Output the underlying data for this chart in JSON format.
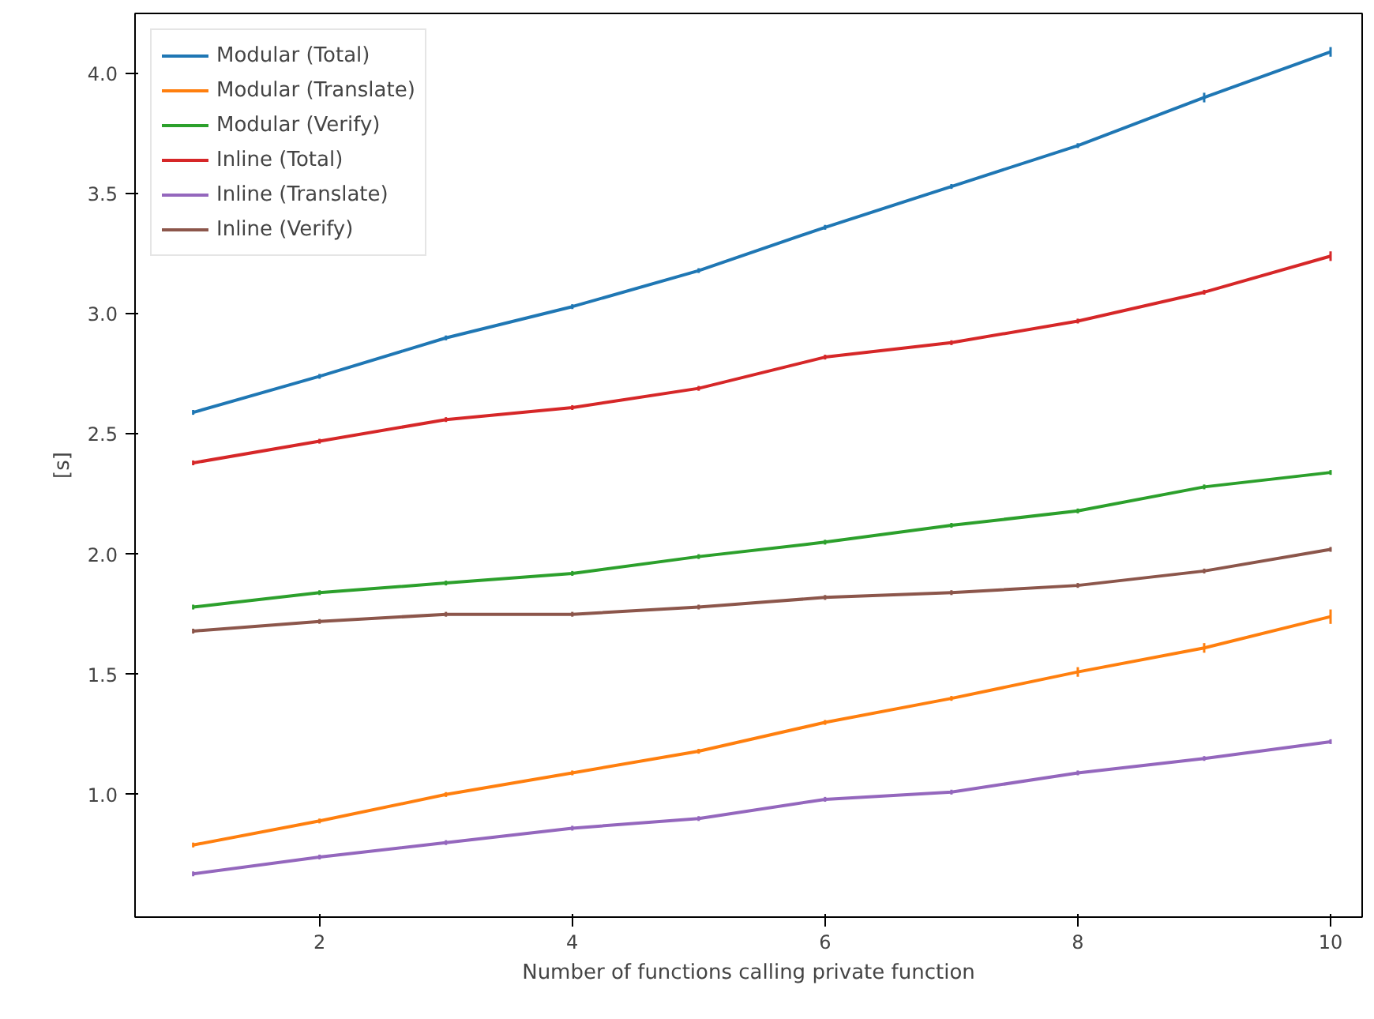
{
  "chart_data": {
    "type": "line",
    "xlabel": "Number of functions calling private function",
    "ylabel": "[s]",
    "x": [
      1,
      2,
      3,
      4,
      5,
      6,
      7,
      8,
      9,
      10
    ],
    "xlim": [
      0.54,
      10.25
    ],
    "ylim": [
      0.49,
      4.25
    ],
    "xticks": [
      2,
      4,
      6,
      8,
      10
    ],
    "yticks": [
      {
        "value": 1,
        "label": "1.0"
      },
      1.5,
      {
        "value": 2,
        "label": "2.0"
      },
      2.5,
      {
        "value": 3,
        "label": "3.0"
      },
      3.5,
      {
        "value": 4,
        "label": "4.0"
      }
    ],
    "grid": false,
    "legend": "top left",
    "line_style": "solid",
    "series": [
      {
        "name": "Modular (Total)",
        "color": "#1f77b4",
        "values": [
          2.59,
          2.74,
          2.9,
          3.03,
          3.18,
          3.36,
          3.53,
          3.7,
          3.9,
          4.09
        ],
        "errors": [
          0.01,
          0.01,
          0.01,
          0.01,
          0.01,
          0.01,
          0.01,
          0.01,
          0.02,
          0.02
        ]
      },
      {
        "name": "Modular (Translate)",
        "color": "#ff7f0e",
        "values": [
          0.79,
          0.89,
          1.0,
          1.09,
          1.18,
          1.3,
          1.4,
          1.51,
          1.61,
          1.74
        ],
        "errors": [
          0.01,
          0.01,
          0.01,
          0.01,
          0.01,
          0.01,
          0.01,
          0.02,
          0.02,
          0.03
        ]
      },
      {
        "name": "Modular (Verify)",
        "color": "#2ca02c",
        "values": [
          1.78,
          1.84,
          1.88,
          1.92,
          1.99,
          2.05,
          2.12,
          2.18,
          2.28,
          2.34
        ],
        "errors": [
          0.01,
          0.01,
          0.01,
          0.01,
          0.01,
          0.01,
          0.01,
          0.01,
          0.01,
          0.01
        ]
      },
      {
        "name": "Inline (Total)",
        "color": "#d62728",
        "values": [
          2.38,
          2.47,
          2.56,
          2.61,
          2.69,
          2.82,
          2.88,
          2.97,
          3.09,
          3.24
        ],
        "errors": [
          0.01,
          0.01,
          0.01,
          0.01,
          0.01,
          0.01,
          0.01,
          0.01,
          0.01,
          0.02
        ]
      },
      {
        "name": "Inline (Translate)",
        "color": "#9467bd",
        "values": [
          0.67,
          0.74,
          0.8,
          0.86,
          0.9,
          0.98,
          1.01,
          1.09,
          1.15,
          1.22
        ],
        "errors": [
          0.01,
          0.01,
          0.01,
          0.01,
          0.01,
          0.01,
          0.01,
          0.01,
          0.01,
          0.01
        ]
      },
      {
        "name": "Inline (Verify)",
        "color": "#8c564b",
        "values": [
          1.68,
          1.72,
          1.75,
          1.75,
          1.78,
          1.82,
          1.84,
          1.87,
          1.93,
          2.02
        ],
        "errors": [
          0.01,
          0.01,
          0.01,
          0.01,
          0.01,
          0.01,
          0.01,
          0.01,
          0.01,
          0.01
        ]
      }
    ]
  }
}
